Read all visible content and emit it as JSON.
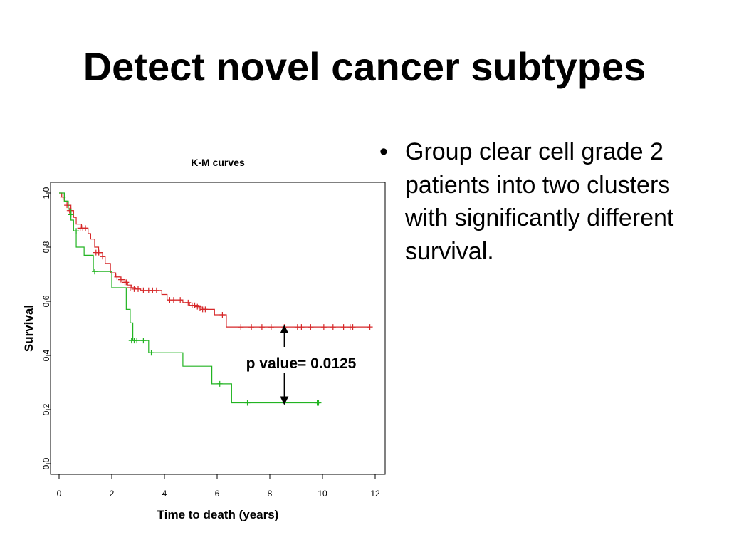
{
  "slide": {
    "title": "Detect novel cancer subtypes",
    "bullets": [
      "Group clear cell grade 2 patients into two clusters with significantly different survival."
    ],
    "bullet_symbol": "•"
  },
  "chart_data": {
    "type": "line",
    "title": "K-M curves",
    "xlabel": "Time to death (years)",
    "ylabel": "Survival",
    "xlim": [
      0,
      12
    ],
    "ylim": [
      0,
      1
    ],
    "xticks": [
      "0",
      "2",
      "4",
      "6",
      "8",
      "10",
      "12"
    ],
    "yticks": [
      "0.0",
      "0.2",
      "0.4",
      "0.6",
      "0.8",
      "1.0"
    ],
    "grid": false,
    "annotation": "p value= 0.0125",
    "annotation_arrow_x": 8.55,
    "series": [
      {
        "color": "#d62728",
        "step_x": [
          0,
          0.1,
          0.2,
          0.3,
          0.45,
          0.55,
          0.65,
          0.85,
          1.1,
          1.2,
          1.35,
          1.5,
          1.65,
          1.75,
          1.95,
          2.15,
          2.35,
          2.5,
          2.6,
          2.75,
          2.9,
          3.1,
          3.9,
          4.1,
          4.7,
          4.95,
          5.3,
          5.4,
          5.5,
          5.9,
          6.35,
          11.8
        ],
        "step_y": [
          1.0,
          0.985,
          0.97,
          0.955,
          0.935,
          0.91,
          0.885,
          0.87,
          0.85,
          0.83,
          0.8,
          0.78,
          0.765,
          0.74,
          0.705,
          0.69,
          0.68,
          0.67,
          0.66,
          0.65,
          0.645,
          0.64,
          0.625,
          0.605,
          0.595,
          0.585,
          0.58,
          0.575,
          0.57,
          0.55,
          0.505,
          0.505
        ],
        "censor_x": [
          0.15,
          0.3,
          0.4,
          0.45,
          0.8,
          0.9,
          1.0,
          1.4,
          1.5,
          1.55,
          1.65,
          2.2,
          2.35,
          2.5,
          2.55,
          2.7,
          2.85,
          3.0,
          3.2,
          3.4,
          3.55,
          3.7,
          4.2,
          4.35,
          4.6,
          4.9,
          5.05,
          5.15,
          5.25,
          5.35,
          5.45,
          5.55,
          6.2,
          6.9,
          7.3,
          7.7,
          8.05,
          8.55,
          9.05,
          9.2,
          9.55,
          10.05,
          10.4,
          10.8,
          11.05,
          11.15,
          11.8
        ],
        "censor_y": [
          0.985,
          0.955,
          0.935,
          0.935,
          0.87,
          0.87,
          0.87,
          0.78,
          0.78,
          0.78,
          0.765,
          0.69,
          0.68,
          0.67,
          0.67,
          0.65,
          0.645,
          0.645,
          0.64,
          0.64,
          0.64,
          0.64,
          0.605,
          0.605,
          0.605,
          0.595,
          0.585,
          0.585,
          0.58,
          0.575,
          0.57,
          0.57,
          0.55,
          0.505,
          0.505,
          0.505,
          0.505,
          0.505,
          0.505,
          0.505,
          0.505,
          0.505,
          0.505,
          0.505,
          0.505,
          0.505,
          0.505
        ]
      },
      {
        "color": "#22b422",
        "step_x": [
          0,
          0.2,
          0.35,
          0.45,
          0.55,
          0.65,
          0.95,
          1.3,
          2.0,
          2.55,
          2.7,
          2.8,
          3.4,
          4.7,
          5.8,
          6.55,
          9.9
        ],
        "step_y": [
          1.0,
          0.97,
          0.94,
          0.9,
          0.86,
          0.8,
          0.77,
          0.71,
          0.65,
          0.57,
          0.52,
          0.455,
          0.41,
          0.36,
          0.295,
          0.225,
          0.225
        ],
        "censor_x": [
          0.45,
          0.65,
          1.35,
          2.75,
          2.85,
          2.95,
          3.2,
          3.5,
          6.1,
          7.15,
          9.8,
          9.85
        ],
        "censor_y": [
          0.92,
          0.86,
          0.71,
          0.455,
          0.455,
          0.455,
          0.455,
          0.41,
          0.295,
          0.225,
          0.225,
          0.225
        ]
      }
    ]
  }
}
